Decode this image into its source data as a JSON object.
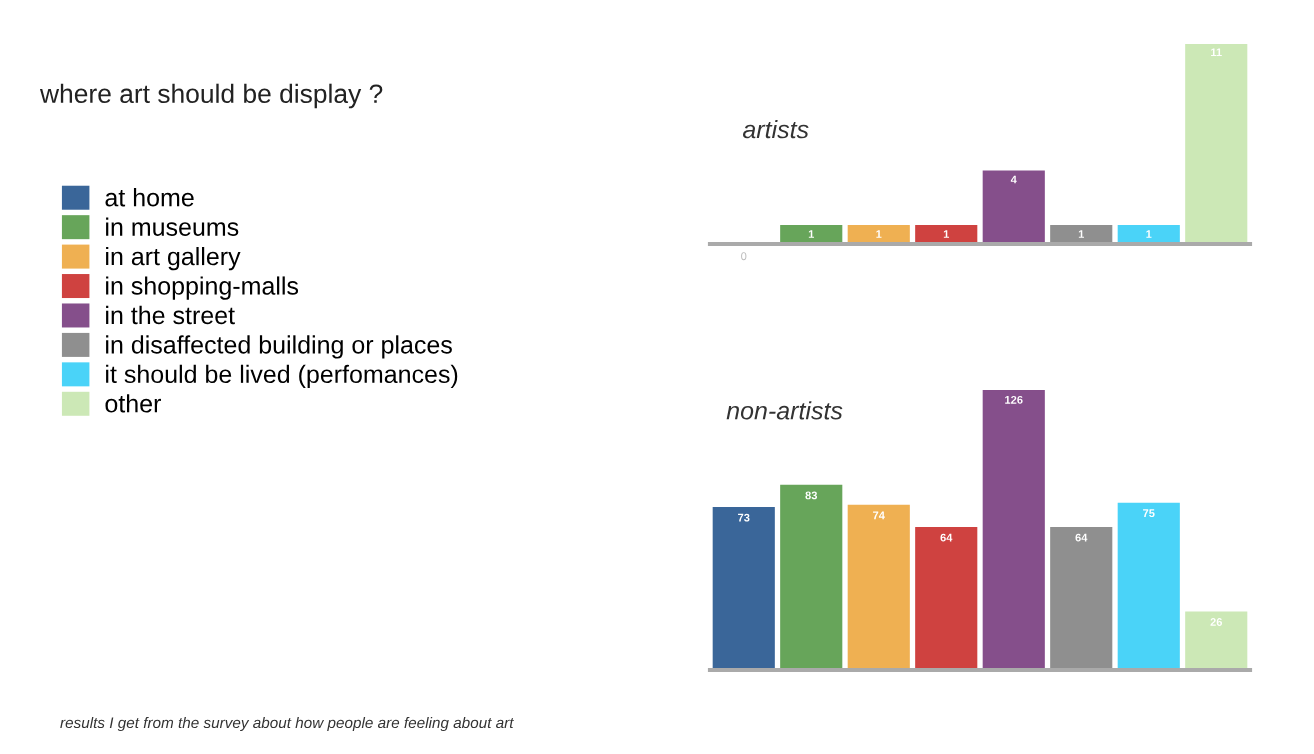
{
  "chart_data": [
    {
      "type": "bar",
      "title": "artists",
      "categories": [
        null,
        null,
        null,
        null,
        null,
        null,
        null,
        null
      ],
      "series": [
        {
          "name": "at home",
          "color": "#3a6699",
          "values": [
            0,
            null,
            null,
            null,
            null,
            null,
            null,
            null
          ]
        },
        {
          "name": "in museums",
          "color": "#67a55a",
          "values": [
            null,
            1,
            null,
            null,
            null,
            null,
            null,
            null
          ]
        },
        {
          "name": "in art gallery",
          "color": "#efb052",
          "values": [
            null,
            null,
            1,
            null,
            null,
            null,
            null,
            null
          ]
        },
        {
          "name": "in shopping-malls",
          "color": "#cf4240",
          "values": [
            null,
            null,
            null,
            1,
            null,
            null,
            null,
            null
          ]
        },
        {
          "name": "in the street",
          "color": "#854f8b",
          "values": [
            null,
            null,
            null,
            null,
            4,
            null,
            null,
            null
          ]
        },
        {
          "name": "in disaffected building or places",
          "color": "#8f8f8f",
          "values": [
            null,
            null,
            null,
            null,
            null,
            1,
            null,
            null
          ]
        },
        {
          "name": "it should be lived (perfomances)",
          "color": "#4ad3f8",
          "values": [
            null,
            null,
            null,
            null,
            null,
            null,
            1,
            null
          ]
        },
        {
          "name": "other",
          "color": "#cce8b6",
          "values": [
            null,
            null,
            null,
            null,
            null,
            null,
            null,
            11
          ]
        }
      ],
      "data_labels": true,
      "stacked": true,
      "legend": "left",
      "annotations": [
        "where art should be display ?",
        "results I get from the survey about how people are feeling about art"
      ]
    },
    {
      "type": "bar",
      "title": "non-artists",
      "categories": [
        null,
        null,
        null,
        null,
        null,
        null,
        null,
        null
      ],
      "series": [
        {
          "color": "#3a6699",
          "values": [
            73,
            null,
            null,
            null,
            null,
            null,
            null,
            null
          ]
        },
        {
          "color": "#67a55a",
          "values": [
            null,
            83,
            null,
            null,
            null,
            null,
            null,
            null
          ]
        },
        {
          "color": "#efb052",
          "values": [
            null,
            null,
            74,
            null,
            null,
            null,
            null,
            null
          ]
        },
        {
          "color": "#cf4240",
          "values": [
            null,
            null,
            null,
            64,
            null,
            null,
            null,
            null
          ]
        },
        {
          "color": "#854f8b",
          "values": [
            null,
            null,
            null,
            null,
            126,
            null,
            null,
            null
          ]
        },
        {
          "color": "#8f8f8f",
          "values": [
            null,
            null,
            null,
            null,
            null,
            64,
            null,
            null
          ]
        },
        {
          "color": "#4ad3f8",
          "values": [
            null,
            null,
            null,
            null,
            null,
            null,
            75,
            null
          ]
        },
        {
          "color": "#cce8b6",
          "values": [
            null,
            null,
            null,
            null,
            null,
            null,
            null,
            26
          ]
        }
      ],
      "data_labels": true,
      "stacked": true
    }
  ]
}
